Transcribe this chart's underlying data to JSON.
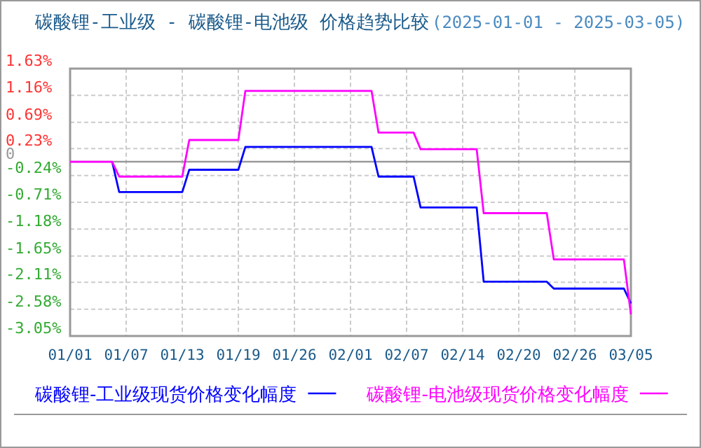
{
  "chart_data": {
    "type": "line",
    "title": "碳酸锂-工业级 - 碳酸锂-电池级 价格趋势比较",
    "subtitle": "(2025-01-01 - 2025-03-05)",
    "categories": [
      "01/01",
      null,
      null,
      null,
      null,
      null,
      null,
      null,
      "01/07",
      null,
      null,
      null,
      null,
      null,
      null,
      null,
      "01/13",
      null,
      null,
      null,
      null,
      null,
      null,
      null,
      "01/19",
      null,
      null,
      null,
      null,
      null,
      null,
      null,
      "01/26",
      null,
      null,
      null,
      null,
      null,
      null,
      null,
      "02/01",
      null,
      null,
      null,
      null,
      null,
      null,
      null,
      "02/07",
      null,
      null,
      null,
      null,
      null,
      null,
      null,
      "02/14",
      null,
      null,
      null,
      null,
      null,
      null,
      null,
      "02/20",
      null,
      null,
      null,
      null,
      null,
      null,
      null,
      "02/26",
      null,
      null,
      null,
      null,
      null,
      null,
      null,
      "03/05"
    ],
    "series": [
      {
        "name": "碳酸锂-工业级现货价格变化幅度",
        "color": "#0000ff",
        "values": [
          null,
          null,
          null,
          null,
          null,
          null,
          0,
          -0.53,
          -0.53,
          -0.53,
          -0.53,
          -0.53,
          -0.53,
          -0.53,
          -0.53,
          -0.53,
          -0.53,
          -0.14,
          -0.14,
          -0.14,
          -0.14,
          -0.14,
          -0.14,
          -0.14,
          -0.14,
          0.26,
          0.26,
          0.26,
          0.26,
          0.26,
          0.26,
          0.26,
          0.26,
          0.26,
          0.26,
          0.26,
          0.26,
          0.26,
          0.26,
          0.26,
          0.26,
          0.26,
          0.26,
          0.26,
          -0.26,
          -0.26,
          -0.26,
          -0.26,
          -0.26,
          -0.26,
          -0.8,
          -0.8,
          -0.8,
          -0.8,
          -0.8,
          -0.8,
          -0.8,
          -0.8,
          -0.8,
          -2.1,
          -2.1,
          -2.1,
          -2.1,
          -2.1,
          -2.1,
          -2.1,
          -2.1,
          -2.1,
          -2.1,
          -2.22,
          -2.22,
          -2.22,
          -2.22,
          -2.22,
          -2.22,
          -2.22,
          -2.22,
          -2.22,
          -2.22,
          -2.22,
          -2.48
        ]
      },
      {
        "name": "碳酸锂-电池级现货价格变化幅度",
        "color": "#ff00ff",
        "values": [
          0,
          0,
          0,
          0,
          0,
          0,
          0,
          -0.26,
          -0.26,
          -0.26,
          -0.26,
          -0.26,
          -0.26,
          -0.26,
          -0.26,
          -0.26,
          -0.26,
          0.38,
          0.38,
          0.38,
          0.38,
          0.38,
          0.38,
          0.38,
          0.38,
          1.24,
          1.24,
          1.24,
          1.24,
          1.24,
          1.24,
          1.24,
          1.24,
          1.24,
          1.24,
          1.24,
          1.24,
          1.24,
          1.24,
          1.24,
          1.24,
          1.24,
          1.24,
          1.24,
          0.51,
          0.51,
          0.51,
          0.51,
          0.51,
          0.51,
          0.22,
          0.22,
          0.22,
          0.22,
          0.22,
          0.22,
          0.22,
          0.22,
          0.22,
          -0.9,
          -0.9,
          -0.9,
          -0.9,
          -0.9,
          -0.9,
          -0.9,
          -0.9,
          -0.9,
          -0.9,
          -1.71,
          -1.71,
          -1.71,
          -1.71,
          -1.71,
          -1.71,
          -1.71,
          -1.71,
          -1.71,
          -1.71,
          -1.71,
          -2.67
        ]
      }
    ],
    "ylim": [
      -3.05,
      1.63
    ],
    "yticks": [
      {
        "value": 1.63,
        "label": "1.63%"
      },
      {
        "value": 1.16,
        "label": "1.16%"
      },
      {
        "value": 0.69,
        "label": "0.69%"
      },
      {
        "value": 0.23,
        "label": "0.23%"
      },
      0,
      {
        "value": -0.24,
        "label": "-0.24%"
      },
      {
        "value": -0.71,
        "label": "-0.71%"
      },
      {
        "value": -1.18,
        "label": "-1.18%"
      },
      {
        "value": -1.65,
        "label": "-1.65%"
      },
      {
        "value": -2.11,
        "label": "-2.11%"
      },
      {
        "value": -2.58,
        "label": "-2.58%"
      },
      {
        "value": -3.05,
        "label": "-3.05%"
      }
    ],
    "ref_lines": [
      {
        "axis": "y",
        "value": 0,
        "color": "#999999"
      }
    ],
    "grid": true,
    "legend": "bottom",
    "marker": "none",
    "line_style": "solid"
  }
}
